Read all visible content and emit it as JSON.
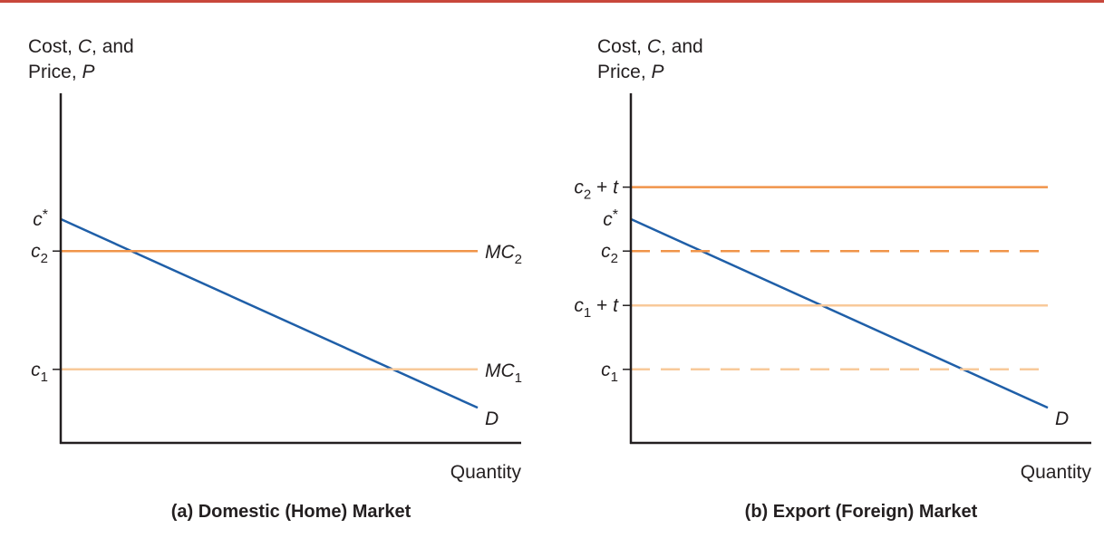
{
  "colors": {
    "top_rule": "#c8473b",
    "axis": "#231f20",
    "demand": "#1f5fa8",
    "mc_high": "#f0944a",
    "mc_low": "#f8c99a"
  },
  "chart_data": [
    {
      "type": "line",
      "title": "(a) Domestic (Home) Market",
      "ylabel": "Cost, C, and Price, P",
      "ylabel_parts": {
        "line1_prefix": "Cost, ",
        "line1_var": "C",
        "line1_suffix": ", and",
        "line2_prefix": "Price, ",
        "line2_var": "P"
      },
      "xlabel": "Quantity",
      "xlim": [
        0,
        100
      ],
      "ylim": [
        0,
        100
      ],
      "levels": {
        "c_star": 70,
        "c2": 60,
        "c1": 23
      },
      "tick_labels": [
        {
          "key": "c_star",
          "base": "c",
          "sup": "*",
          "sub": "",
          "tail": "",
          "tick": false
        },
        {
          "key": "c2",
          "base": "c",
          "sup": "",
          "sub": "2",
          "tail": "",
          "tick": true
        },
        {
          "key": "c1",
          "base": "c",
          "sup": "",
          "sub": "1",
          "tail": "",
          "tick": true
        }
      ],
      "series": [
        {
          "name": "D",
          "label_base": "D",
          "label_sub": "",
          "style": "solid",
          "color_key": "demand",
          "x": [
            0,
            100
          ],
          "y": [
            70,
            11
          ]
        },
        {
          "name": "MC2",
          "label_base": "MC",
          "label_sub": "2",
          "style": "solid",
          "color_key": "mc_high",
          "x": [
            0,
            100
          ],
          "y": [
            60,
            60
          ]
        },
        {
          "name": "MC1",
          "label_base": "MC",
          "label_sub": "1",
          "style": "solid",
          "color_key": "mc_low",
          "x": [
            0,
            100
          ],
          "y": [
            23,
            23
          ]
        }
      ]
    },
    {
      "type": "line",
      "title": "(b) Export (Foreign) Market",
      "ylabel": "Cost, C, and Price, P",
      "ylabel_parts": {
        "line1_prefix": "Cost, ",
        "line1_var": "C",
        "line1_suffix": ", and",
        "line2_prefix": "Price, ",
        "line2_var": "P"
      },
      "xlabel": "Quantity",
      "xlim": [
        0,
        100
      ],
      "ylim": [
        0,
        100
      ],
      "levels": {
        "c2_plus_t": 80,
        "c_star": 70,
        "c2": 60,
        "c1_plus_t": 43,
        "c1": 23
      },
      "tick_labels": [
        {
          "key": "c2_plus_t",
          "base": "c",
          "sup": "",
          "sub": "2",
          "tail": " + t",
          "tick": true
        },
        {
          "key": "c_star",
          "base": "c",
          "sup": "*",
          "sub": "",
          "tail": "",
          "tick": false
        },
        {
          "key": "c2",
          "base": "c",
          "sup": "",
          "sub": "2",
          "tail": "",
          "tick": true
        },
        {
          "key": "c1_plus_t",
          "base": "c",
          "sup": "",
          "sub": "1",
          "tail": " + t",
          "tick": true
        },
        {
          "key": "c1",
          "base": "c",
          "sup": "",
          "sub": "1",
          "tail": "",
          "tick": true
        }
      ],
      "series": [
        {
          "name": "D",
          "label_base": "D",
          "label_sub": "",
          "style": "solid",
          "color_key": "demand",
          "x": [
            0,
            100
          ],
          "y": [
            70,
            11
          ]
        },
        {
          "name": "c2 + t",
          "label_base": "",
          "label_sub": "",
          "style": "solid",
          "color_key": "mc_high",
          "x": [
            0,
            100
          ],
          "y": [
            80,
            80
          ]
        },
        {
          "name": "c2",
          "label_base": "",
          "label_sub": "",
          "style": "dashed",
          "color_key": "mc_high",
          "x": [
            0,
            98
          ],
          "y": [
            60,
            60
          ]
        },
        {
          "name": "c1 + t",
          "label_base": "",
          "label_sub": "",
          "style": "solid",
          "color_key": "mc_low",
          "x": [
            0,
            100
          ],
          "y": [
            43,
            43
          ]
        },
        {
          "name": "c1",
          "label_base": "",
          "label_sub": "",
          "style": "dashed",
          "color_key": "mc_low",
          "x": [
            0,
            98
          ],
          "y": [
            23,
            23
          ]
        }
      ]
    }
  ]
}
